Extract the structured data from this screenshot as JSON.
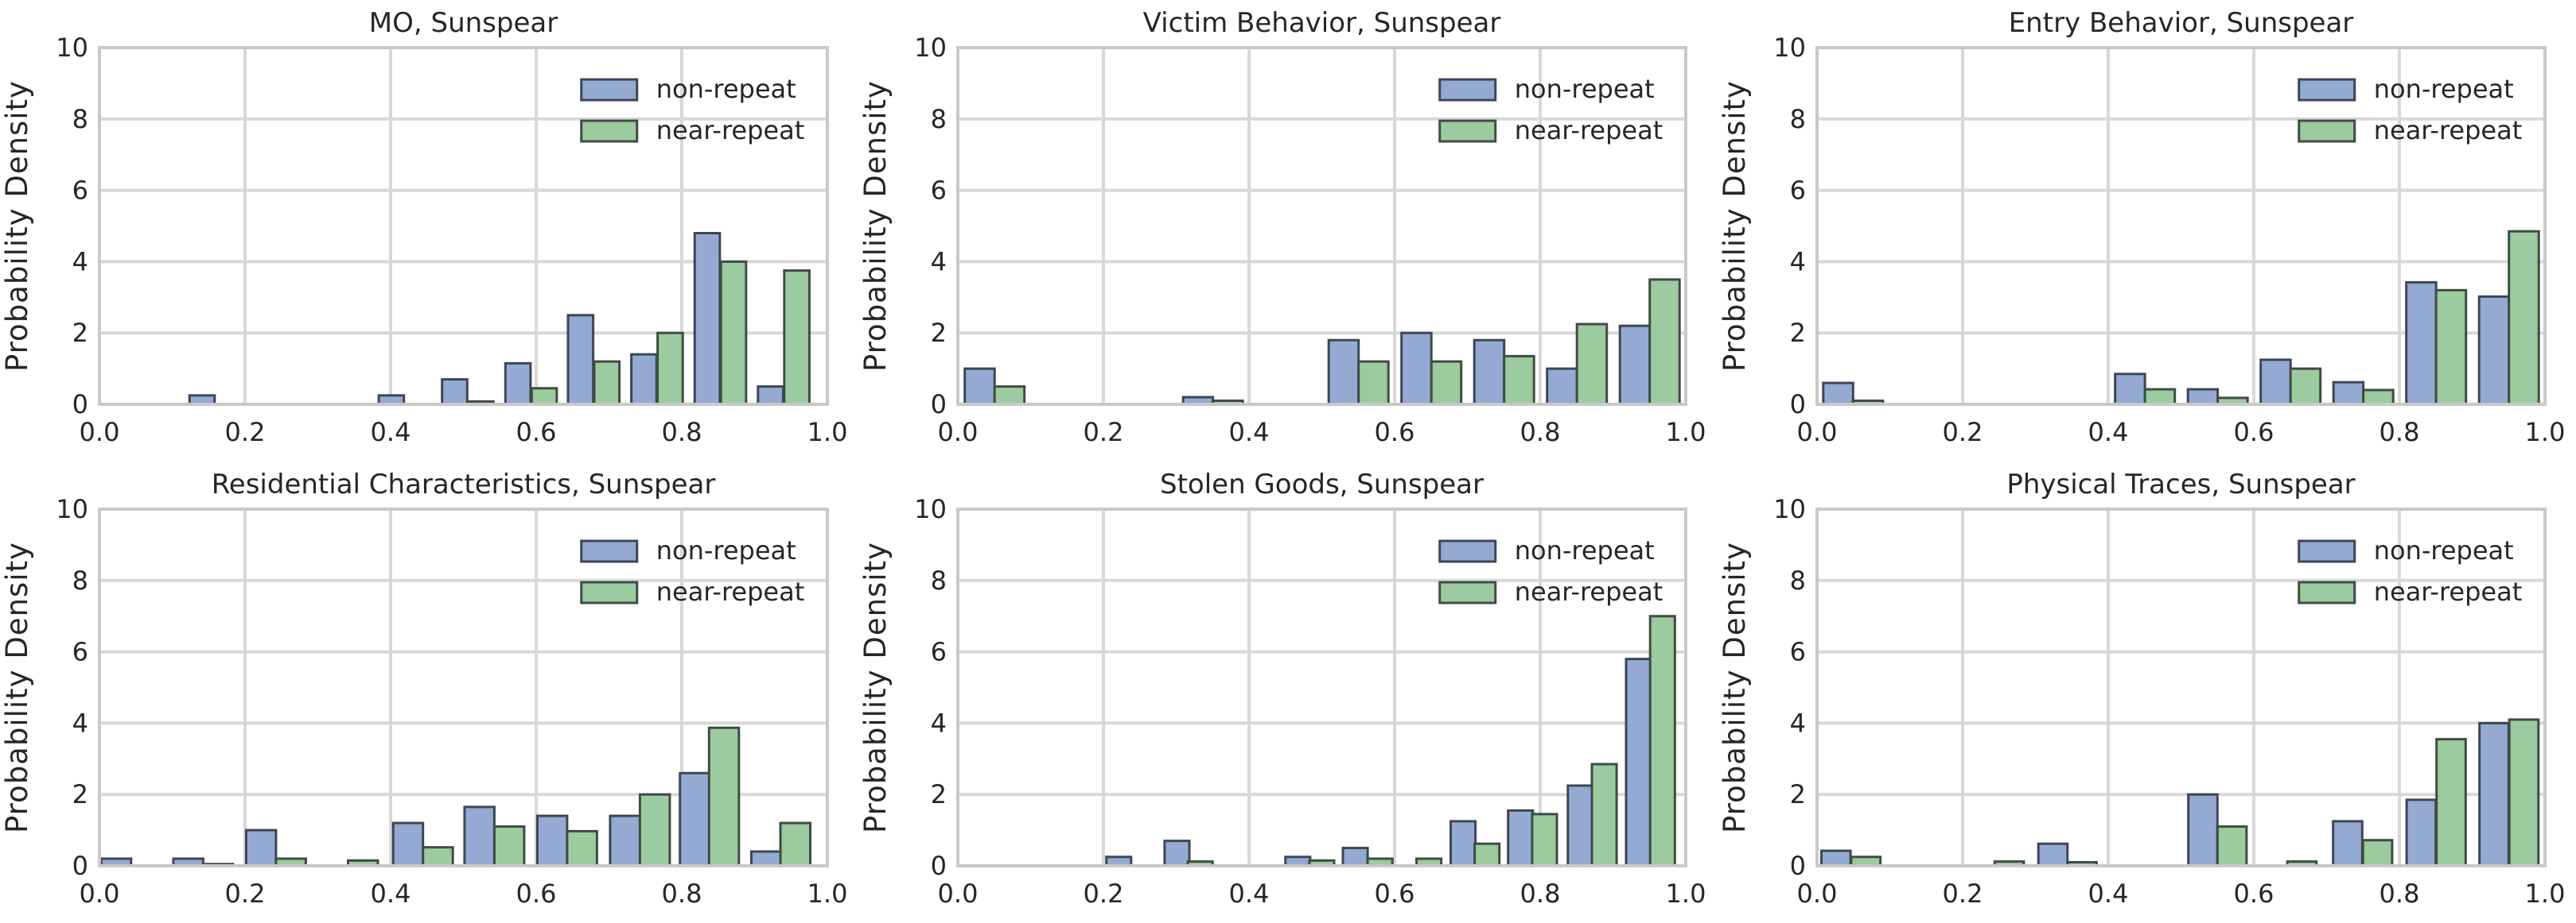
{
  "figure": {
    "background": "#ffffff",
    "text_color": "#262626",
    "gridline_color": "#d8d8d8",
    "spine_color": "#c9c9c9"
  },
  "axes": {
    "ylabel": "Probability Density",
    "xlim": [
      0,
      1
    ],
    "ylim": [
      0,
      10
    ],
    "grid": true,
    "xticklabels": [
      "0.0",
      "0.2",
      "0.4",
      "0.6",
      "0.8",
      "1.0"
    ],
    "xtickvalues": [
      0,
      0.2,
      0.4,
      0.6,
      0.8,
      1.0
    ],
    "yticklabels": [
      "0",
      "2",
      "4",
      "6",
      "8",
      "10"
    ],
    "ytickvalues": [
      0,
      2,
      4,
      6,
      8,
      10
    ]
  },
  "legend": {
    "position": "upper-right",
    "items": [
      {
        "label": "non-repeat",
        "color": "#94aad2",
        "edge": "#3d4655"
      },
      {
        "label": "near-repeat",
        "color": "#9bcb9e",
        "edge": "#404b45"
      }
    ]
  },
  "chart_data": [
    {
      "type": "bar",
      "title": "MO, Sunspear",
      "ylabel": "Probability Density",
      "xlim": [
        0,
        1
      ],
      "ylim": [
        0,
        10
      ],
      "bar_width": 0.0345,
      "series": [
        {
          "name": "non-repeat",
          "color": "#94aad2",
          "edge": "#3d4655",
          "bars": [
            [
              0.141,
              0.25
            ],
            [
              0.401,
              0.25
            ],
            [
              0.488,
              0.7
            ],
            [
              0.575,
              1.15
            ],
            [
              0.661,
              2.5
            ],
            [
              0.748,
              1.4
            ],
            [
              0.835,
              4.8
            ],
            [
              0.922,
              0.5
            ]
          ]
        },
        {
          "name": "near-repeat",
          "color": "#9bcb9e",
          "edge": "#404b45",
          "bars": [
            [
              0.524,
              0.08
            ],
            [
              0.611,
              0.45
            ],
            [
              0.697,
              1.2
            ],
            [
              0.784,
              2.0
            ],
            [
              0.871,
              4.0
            ],
            [
              0.958,
              3.75
            ]
          ]
        }
      ]
    },
    {
      "type": "bar",
      "title": "Victim Behavior, Sunspear",
      "ylabel": "Probability Density",
      "xlim": [
        0,
        1
      ],
      "ylim": [
        0,
        10
      ],
      "bar_width": 0.041,
      "series": [
        {
          "name": "non-repeat",
          "color": "#94aad2",
          "edge": "#3d4655",
          "bars": [
            [
              0.03,
              1.0
            ],
            [
              0.33,
              0.2
            ],
            [
              0.53,
              1.8
            ],
            [
              0.63,
              2.0
            ],
            [
              0.73,
              1.8
            ],
            [
              0.83,
              1.0
            ],
            [
              0.93,
              2.2
            ]
          ]
        },
        {
          "name": "near-repeat",
          "color": "#9bcb9e",
          "edge": "#404b45",
          "bars": [
            [
              0.071,
              0.5
            ],
            [
              0.371,
              0.1
            ],
            [
              0.571,
              1.2
            ],
            [
              0.671,
              1.2
            ],
            [
              0.771,
              1.35
            ],
            [
              0.871,
              2.25
            ],
            [
              0.971,
              3.5
            ]
          ]
        }
      ]
    },
    {
      "type": "bar",
      "title": "Entry Behavior, Sunspear",
      "ylabel": "Probability Density",
      "xlim": [
        0,
        1
      ],
      "ylim": [
        0,
        10
      ],
      "bar_width": 0.041,
      "series": [
        {
          "name": "non-repeat",
          "color": "#94aad2",
          "edge": "#3d4655",
          "bars": [
            [
              0.029,
              0.6
            ],
            [
              0.43,
              0.85
            ],
            [
              0.53,
              0.42
            ],
            [
              0.63,
              1.25
            ],
            [
              0.73,
              0.62
            ],
            [
              0.83,
              3.42
            ],
            [
              0.93,
              3.02
            ]
          ]
        },
        {
          "name": "near-repeat",
          "color": "#9bcb9e",
          "edge": "#404b45",
          "bars": [
            [
              0.07,
              0.1
            ],
            [
              0.471,
              0.42
            ],
            [
              0.571,
              0.18
            ],
            [
              0.671,
              1.0
            ],
            [
              0.771,
              0.4
            ],
            [
              0.871,
              3.2
            ],
            [
              0.971,
              4.85
            ]
          ]
        }
      ]
    },
    {
      "type": "bar",
      "title": "Residential Characteristics, Sunspear",
      "ylabel": "Probability Density",
      "xlim": [
        0,
        1
      ],
      "ylim": [
        0,
        10
      ],
      "bar_width": 0.041,
      "series": [
        {
          "name": "non-repeat",
          "color": "#94aad2",
          "edge": "#3d4655",
          "bars": [
            [
              0.023,
              0.2
            ],
            [
              0.122,
              0.2
            ],
            [
              0.222,
              1.0
            ],
            [
              0.424,
              1.2
            ],
            [
              0.522,
              1.65
            ],
            [
              0.622,
              1.4
            ],
            [
              0.722,
              1.4
            ],
            [
              0.818,
              2.6
            ],
            [
              0.916,
              0.4
            ]
          ]
        },
        {
          "name": "near-repeat",
          "color": "#9bcb9e",
          "edge": "#404b45",
          "bars": [
            [
              0.163,
              0.05
            ],
            [
              0.263,
              0.2
            ],
            [
              0.362,
              0.15
            ],
            [
              0.465,
              0.52
            ],
            [
              0.563,
              1.1
            ],
            [
              0.663,
              0.97
            ],
            [
              0.763,
              2.0
            ],
            [
              0.858,
              3.87
            ],
            [
              0.956,
              1.2
            ]
          ]
        }
      ]
    },
    {
      "type": "bar",
      "title": "Stolen Goods, Sunspear",
      "ylabel": "Probability Density",
      "xlim": [
        0,
        1
      ],
      "ylim": [
        0,
        10
      ],
      "bar_width": 0.034,
      "series": [
        {
          "name": "non-repeat",
          "color": "#94aad2",
          "edge": "#3d4655",
          "bars": [
            [
              0.221,
              0.25
            ],
            [
              0.301,
              0.7
            ],
            [
              0.467,
              0.25
            ],
            [
              0.546,
              0.5
            ],
            [
              0.694,
              1.25
            ],
            [
              0.773,
              1.55
            ],
            [
              0.855,
              2.25
            ],
            [
              0.935,
              5.8
            ]
          ]
        },
        {
          "name": "near-repeat",
          "color": "#9bcb9e",
          "edge": "#404b45",
          "bars": [
            [
              0.333,
              0.12
            ],
            [
              0.5,
              0.15
            ],
            [
              0.58,
              0.2
            ],
            [
              0.647,
              0.2
            ],
            [
              0.727,
              0.62
            ],
            [
              0.806,
              1.45
            ],
            [
              0.888,
              2.85
            ],
            [
              0.968,
              7.0
            ]
          ]
        }
      ]
    },
    {
      "type": "bar",
      "title": "Physical Traces, Sunspear",
      "ylabel": "Probability Density",
      "xlim": [
        0,
        1
      ],
      "ylim": [
        0,
        10
      ],
      "bar_width": 0.04,
      "series": [
        {
          "name": "non-repeat",
          "color": "#94aad2",
          "edge": "#3d4655",
          "bars": [
            [
              0.026,
              0.42
            ],
            [
              0.324,
              0.62
            ],
            [
              0.53,
              2.0
            ],
            [
              0.729,
              1.25
            ],
            [
              0.83,
              1.85
            ],
            [
              0.93,
              4.0
            ]
          ]
        },
        {
          "name": "near-repeat",
          "color": "#9bcb9e",
          "edge": "#404b45",
          "bars": [
            [
              0.067,
              0.25
            ],
            [
              0.264,
              0.12
            ],
            [
              0.364,
              0.1
            ],
            [
              0.57,
              1.1
            ],
            [
              0.666,
              0.12
            ],
            [
              0.77,
              0.72
            ],
            [
              0.871,
              3.55
            ],
            [
              0.971,
              4.1
            ]
          ]
        }
      ]
    }
  ]
}
